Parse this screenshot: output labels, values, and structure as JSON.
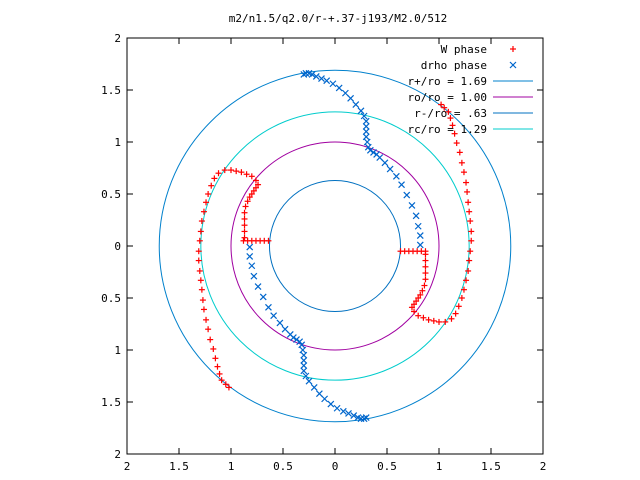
{
  "chart_data": {
    "type": "scatter",
    "title": "m2/n1.5/q2.0/r-+.37-j193/M2.0/512",
    "xlabel": "",
    "ylabel": "",
    "xlim": [
      -2,
      2
    ],
    "ylim": [
      -2,
      2
    ],
    "x_ticks": [
      -2,
      -1.5,
      -1,
      -0.5,
      0,
      0.5,
      1,
      1.5,
      2
    ],
    "x_tick_labels": [
      "2",
      "1.5",
      "1",
      "0.5",
      "0",
      "0.5",
      "1",
      "1.5",
      "2"
    ],
    "y_ticks": [
      2,
      1.5,
      1,
      0.5,
      0,
      -0.5,
      -1,
      -1.5,
      -2
    ],
    "y_tick_labels": [
      "2",
      "1.5",
      "1",
      "0.5",
      "0",
      "0.5",
      "1",
      "1.5",
      "2"
    ],
    "grid": false,
    "legend_position": "top-right",
    "series": [
      {
        "name": "W phase",
        "kind": "points",
        "marker": "+",
        "color": "#ff0000",
        "points": [
          [
            -0.88,
            0.05
          ],
          [
            -0.84,
            0.05
          ],
          [
            -0.8,
            0.05
          ],
          [
            -0.76,
            0.05
          ],
          [
            -0.72,
            0.05
          ],
          [
            -0.68,
            0.05
          ],
          [
            -0.64,
            0.05
          ],
          [
            -0.87,
            0.08
          ],
          [
            -0.87,
            0.14
          ],
          [
            -0.87,
            0.2
          ],
          [
            -0.87,
            0.26
          ],
          [
            -0.87,
            0.32
          ],
          [
            -0.86,
            0.38
          ],
          [
            -0.84,
            0.43
          ],
          [
            -0.82,
            0.47
          ],
          [
            -0.8,
            0.5
          ],
          [
            -0.78,
            0.53
          ],
          [
            -0.76,
            0.56
          ],
          [
            -0.74,
            0.59
          ],
          [
            -0.76,
            0.63
          ],
          [
            -0.8,
            0.67
          ],
          [
            -0.85,
            0.69
          ],
          [
            -0.9,
            0.71
          ],
          [
            -0.95,
            0.72
          ],
          [
            -1.0,
            0.73
          ],
          [
            -1.06,
            0.73
          ],
          [
            -1.12,
            0.7
          ],
          [
            -1.16,
            0.65
          ],
          [
            -1.19,
            0.58
          ],
          [
            -1.22,
            0.5
          ],
          [
            -1.24,
            0.42
          ],
          [
            -1.26,
            0.33
          ],
          [
            -1.28,
            0.24
          ],
          [
            -1.29,
            0.14
          ],
          [
            -1.3,
            0.05
          ],
          [
            -1.31,
            -0.05
          ],
          [
            -1.31,
            -0.14
          ],
          [
            -1.3,
            -0.24
          ],
          [
            -1.29,
            -0.33
          ],
          [
            -1.28,
            -0.42
          ],
          [
            -1.27,
            -0.52
          ],
          [
            -1.26,
            -0.61
          ],
          [
            -1.24,
            -0.71
          ],
          [
            -1.22,
            -0.8
          ],
          [
            -1.2,
            -0.9
          ],
          [
            -1.17,
            -0.99
          ],
          [
            -1.15,
            -1.08
          ],
          [
            -1.13,
            -1.16
          ],
          [
            -1.11,
            -1.23
          ],
          [
            -1.09,
            -1.29
          ],
          [
            -1.05,
            -1.33
          ],
          [
            -1.02,
            -1.36
          ],
          [
            0.63,
            -0.05
          ],
          [
            0.67,
            -0.05
          ],
          [
            0.71,
            -0.05
          ],
          [
            0.75,
            -0.05
          ],
          [
            0.79,
            -0.05
          ],
          [
            0.83,
            -0.05
          ],
          [
            0.87,
            -0.05
          ],
          [
            0.87,
            -0.08
          ],
          [
            0.87,
            -0.14
          ],
          [
            0.87,
            -0.2
          ],
          [
            0.87,
            -0.26
          ],
          [
            0.87,
            -0.32
          ],
          [
            0.86,
            -0.38
          ],
          [
            0.84,
            -0.43
          ],
          [
            0.82,
            -0.47
          ],
          [
            0.8,
            -0.5
          ],
          [
            0.78,
            -0.53
          ],
          [
            0.76,
            -0.56
          ],
          [
            0.74,
            -0.59
          ],
          [
            0.76,
            -0.63
          ],
          [
            0.8,
            -0.67
          ],
          [
            0.85,
            -0.69
          ],
          [
            0.9,
            -0.71
          ],
          [
            0.95,
            -0.72
          ],
          [
            1.0,
            -0.73
          ],
          [
            1.06,
            -0.73
          ],
          [
            1.12,
            -0.7
          ],
          [
            1.16,
            -0.65
          ],
          [
            1.19,
            -0.58
          ],
          [
            1.22,
            -0.5
          ],
          [
            1.24,
            -0.42
          ],
          [
            1.26,
            -0.33
          ],
          [
            1.28,
            -0.24
          ],
          [
            1.29,
            -0.14
          ],
          [
            1.3,
            -0.05
          ],
          [
            1.31,
            0.05
          ],
          [
            1.31,
            0.14
          ],
          [
            1.3,
            0.24
          ],
          [
            1.29,
            0.33
          ],
          [
            1.28,
            0.42
          ],
          [
            1.27,
            0.52
          ],
          [
            1.26,
            0.61
          ],
          [
            1.24,
            0.71
          ],
          [
            1.22,
            0.8
          ],
          [
            1.2,
            0.9
          ],
          [
            1.17,
            0.99
          ],
          [
            1.15,
            1.08
          ],
          [
            1.13,
            1.16
          ],
          [
            1.11,
            1.23
          ],
          [
            1.09,
            1.29
          ],
          [
            1.05,
            1.33
          ],
          [
            1.02,
            1.36
          ]
        ]
      },
      {
        "name": "drho phase",
        "kind": "points",
        "marker": "x",
        "color": "#0066cc",
        "points": [
          [
            -0.3,
            1.65
          ],
          [
            -0.28,
            1.66
          ],
          [
            -0.25,
            1.66
          ],
          [
            -0.22,
            1.65
          ],
          [
            -0.18,
            1.63
          ],
          [
            -0.13,
            1.61
          ],
          [
            -0.08,
            1.59
          ],
          [
            -0.02,
            1.56
          ],
          [
            0.04,
            1.52
          ],
          [
            0.1,
            1.47
          ],
          [
            0.15,
            1.42
          ],
          [
            0.2,
            1.36
          ],
          [
            0.25,
            1.3
          ],
          [
            0.28,
            1.25
          ],
          [
            0.3,
            1.2
          ],
          [
            0.3,
            1.15
          ],
          [
            0.3,
            1.1
          ],
          [
            0.3,
            1.05
          ],
          [
            0.31,
            1.0
          ],
          [
            0.32,
            0.95
          ],
          [
            0.34,
            0.92
          ],
          [
            0.37,
            0.9
          ],
          [
            0.4,
            0.88
          ],
          [
            0.43,
            0.85
          ],
          [
            0.48,
            0.8
          ],
          [
            0.53,
            0.74
          ],
          [
            0.59,
            0.67
          ],
          [
            0.64,
            0.59
          ],
          [
            0.69,
            0.49
          ],
          [
            0.74,
            0.39
          ],
          [
            0.78,
            0.29
          ],
          [
            0.8,
            0.19
          ],
          [
            0.82,
            0.1
          ],
          [
            0.82,
            0.01
          ],
          [
            0.3,
            -1.65
          ],
          [
            0.28,
            -1.66
          ],
          [
            0.25,
            -1.66
          ],
          [
            0.22,
            -1.65
          ],
          [
            0.18,
            -1.63
          ],
          [
            0.13,
            -1.61
          ],
          [
            0.08,
            -1.59
          ],
          [
            0.02,
            -1.56
          ],
          [
            -0.04,
            -1.52
          ],
          [
            -0.1,
            -1.47
          ],
          [
            -0.15,
            -1.42
          ],
          [
            -0.2,
            -1.36
          ],
          [
            -0.25,
            -1.3
          ],
          [
            -0.28,
            -1.25
          ],
          [
            -0.3,
            -1.2
          ],
          [
            -0.3,
            -1.15
          ],
          [
            -0.3,
            -1.1
          ],
          [
            -0.3,
            -1.05
          ],
          [
            -0.31,
            -1.0
          ],
          [
            -0.32,
            -0.95
          ],
          [
            -0.34,
            -0.92
          ],
          [
            -0.37,
            -0.9
          ],
          [
            -0.4,
            -0.88
          ],
          [
            -0.43,
            -0.85
          ],
          [
            -0.48,
            -0.8
          ],
          [
            -0.53,
            -0.74
          ],
          [
            -0.59,
            -0.67
          ],
          [
            -0.64,
            -0.59
          ],
          [
            -0.69,
            -0.49
          ],
          [
            -0.74,
            -0.39
          ],
          [
            -0.78,
            -0.29
          ],
          [
            -0.8,
            -0.19
          ],
          [
            -0.82,
            -0.1
          ],
          [
            -0.82,
            -0.01
          ]
        ]
      },
      {
        "name": "r+/ro = 1.69",
        "kind": "circle",
        "radius": 1.69,
        "color": "#0080cc"
      },
      {
        "name": "ro/ro = 1.00",
        "kind": "circle",
        "radius": 1.0,
        "color": "#a000a0"
      },
      {
        "name": "r-/ro = .63",
        "kind": "circle",
        "radius": 0.63,
        "color": "#0070c0"
      },
      {
        "name": "rc/ro = 1.29",
        "kind": "circle",
        "radius": 1.29,
        "color": "#00cccc"
      }
    ]
  }
}
